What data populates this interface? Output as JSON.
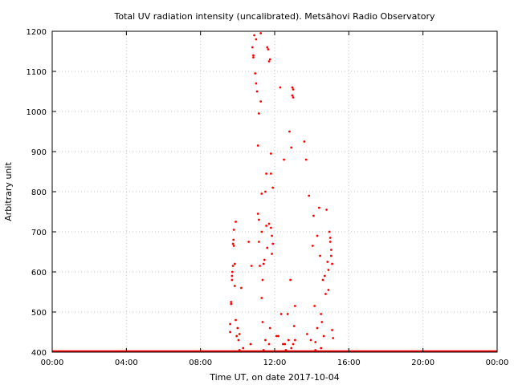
{
  "chart_data": {
    "type": "scatter",
    "title": "Total UV radiation intensity (uncalibrated). Metsähovi Radio Observatory",
    "xlabel": "Time UT, on date 2017-10-04",
    "ylabel": "Arbitrary unit",
    "xlim": [
      0,
      24
    ],
    "ylim": [
      400,
      1200
    ],
    "x_ticks": [
      {
        "value": 0,
        "label": "00:00"
      },
      {
        "value": 4,
        "label": "04:00"
      },
      {
        "value": 8,
        "label": "08:00"
      },
      {
        "value": 12,
        "label": "12:00"
      },
      {
        "value": 16,
        "label": "16:00"
      },
      {
        "value": 20,
        "label": "20:00"
      },
      {
        "value": 24,
        "label": "00:00"
      }
    ],
    "y_ticks": [
      {
        "value": 400,
        "label": "400"
      },
      {
        "value": 500,
        "label": "500"
      },
      {
        "value": 600,
        "label": "600"
      },
      {
        "value": 700,
        "label": "700"
      },
      {
        "value": 800,
        "label": "800"
      },
      {
        "value": 900,
        "label": "900"
      },
      {
        "value": 1000,
        "label": "1000"
      },
      {
        "value": 1100,
        "label": "1100"
      },
      {
        "value": 1200,
        "label": "1200"
      }
    ],
    "grid": true,
    "marker_color": "#ff0000",
    "baseline": {
      "y": 400,
      "x_range": [
        0,
        24
      ]
    },
    "points": [
      [
        9.6,
        470
      ],
      [
        9.6,
        450
      ],
      [
        9.65,
        525
      ],
      [
        9.65,
        520
      ],
      [
        9.7,
        580
      ],
      [
        9.7,
        590
      ],
      [
        9.72,
        600
      ],
      [
        9.75,
        615
      ],
      [
        9.75,
        670
      ],
      [
        9.78,
        680
      ],
      [
        9.8,
        705
      ],
      [
        9.8,
        665
      ],
      [
        9.85,
        620
      ],
      [
        9.9,
        725
      ],
      [
        9.85,
        565
      ],
      [
        9.9,
        480
      ],
      [
        9.95,
        440
      ],
      [
        10.0,
        460
      ],
      [
        10.05,
        430
      ],
      [
        10.1,
        445
      ],
      [
        10.2,
        560
      ],
      [
        10.3,
        410
      ],
      [
        10.1,
        405
      ],
      [
        10.6,
        675
      ],
      [
        10.7,
        420
      ],
      [
        10.75,
        615
      ],
      [
        10.8,
        1160
      ],
      [
        10.85,
        1140
      ],
      [
        10.9,
        1190
      ],
      [
        10.85,
        1135
      ],
      [
        10.95,
        1095
      ],
      [
        11.0,
        1070
      ],
      [
        11.0,
        1180
      ],
      [
        11.05,
        1050
      ],
      [
        11.1,
        915
      ],
      [
        11.15,
        995
      ],
      [
        11.1,
        745
      ],
      [
        11.15,
        730
      ],
      [
        11.15,
        675
      ],
      [
        11.2,
        615
      ],
      [
        11.25,
        1025
      ],
      [
        11.25,
        1195
      ],
      [
        11.3,
        700
      ],
      [
        11.3,
        795
      ],
      [
        11.3,
        535
      ],
      [
        11.35,
        580
      ],
      [
        11.35,
        475
      ],
      [
        11.4,
        620
      ],
      [
        11.45,
        630
      ],
      [
        11.5,
        800
      ],
      [
        11.55,
        845
      ],
      [
        11.6,
        1160
      ],
      [
        11.65,
        1155
      ],
      [
        11.55,
        715
      ],
      [
        11.6,
        660
      ],
      [
        11.7,
        1125
      ],
      [
        11.7,
        720
      ],
      [
        11.75,
        1130
      ],
      [
        11.8,
        895
      ],
      [
        11.8,
        845
      ],
      [
        11.8,
        710
      ],
      [
        11.85,
        645
      ],
      [
        11.85,
        690
      ],
      [
        11.9,
        670
      ],
      [
        11.9,
        810
      ],
      [
        11.75,
        460
      ],
      [
        11.7,
        420
      ],
      [
        11.5,
        430
      ],
      [
        11.4,
        405
      ],
      [
        12.1,
        440
      ],
      [
        12.2,
        440
      ],
      [
        12.3,
        1060
      ],
      [
        12.35,
        495
      ],
      [
        12.45,
        420
      ],
      [
        12.5,
        880
      ],
      [
        12.55,
        420
      ],
      [
        12.6,
        405
      ],
      [
        12.7,
        495
      ],
      [
        12.75,
        430
      ],
      [
        12.8,
        950
      ],
      [
        12.85,
        580
      ],
      [
        12.9,
        910
      ],
      [
        12.95,
        1060
      ],
      [
        12.95,
        1040
      ],
      [
        13.0,
        1055
      ],
      [
        13.0,
        1035
      ],
      [
        13.05,
        465
      ],
      [
        13.1,
        515
      ],
      [
        13.1,
        430
      ],
      [
        13.0,
        420
      ],
      [
        12.9,
        410
      ],
      [
        13.6,
        925
      ],
      [
        13.7,
        880
      ],
      [
        13.75,
        445
      ],
      [
        13.85,
        790
      ],
      [
        13.95,
        430
      ],
      [
        14.05,
        665
      ],
      [
        14.1,
        740
      ],
      [
        14.15,
        515
      ],
      [
        14.2,
        425
      ],
      [
        14.3,
        690
      ],
      [
        14.3,
        460
      ],
      [
        14.4,
        760
      ],
      [
        14.45,
        640
      ],
      [
        14.5,
        495
      ],
      [
        14.55,
        475
      ],
      [
        14.6,
        580
      ],
      [
        14.65,
        440
      ],
      [
        14.7,
        590
      ],
      [
        14.75,
        545
      ],
      [
        14.8,
        755
      ],
      [
        14.85,
        625
      ],
      [
        14.9,
        555
      ],
      [
        14.9,
        605
      ],
      [
        14.95,
        700
      ],
      [
        15.0,
        675
      ],
      [
        15.0,
        685
      ],
      [
        15.05,
        640
      ],
      [
        15.05,
        655
      ],
      [
        15.1,
        620
      ],
      [
        15.1,
        455
      ],
      [
        15.15,
        435
      ],
      [
        14.5,
        410
      ],
      [
        14.2,
        405
      ]
    ]
  }
}
